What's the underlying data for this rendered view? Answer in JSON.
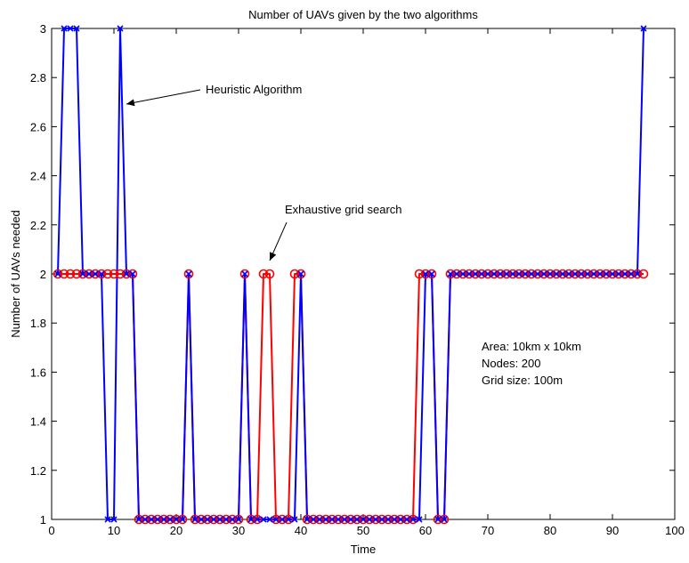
{
  "chart_data": {
    "type": "line",
    "title": "Number of UAVs given by the two algorithms",
    "xlabel": "Time",
    "ylabel": "Number of UAVs needed",
    "xlim": [
      0,
      100
    ],
    "ylim": [
      1,
      3
    ],
    "xticks": [
      0,
      10,
      20,
      30,
      40,
      50,
      60,
      70,
      80,
      90,
      100
    ],
    "yticks": [
      1,
      1.2,
      1.4,
      1.6,
      1.8,
      2,
      2.2,
      2.4,
      2.6,
      2.8,
      3
    ],
    "x": [
      1,
      2,
      3,
      4,
      5,
      6,
      7,
      8,
      9,
      10,
      11,
      12,
      13,
      14,
      15,
      16,
      17,
      18,
      19,
      20,
      21,
      22,
      23,
      24,
      25,
      26,
      27,
      28,
      29,
      30,
      31,
      32,
      33,
      34,
      35,
      36,
      37,
      38,
      39,
      40,
      41,
      42,
      43,
      44,
      45,
      46,
      47,
      48,
      49,
      50,
      51,
      52,
      53,
      54,
      55,
      56,
      57,
      58,
      59,
      60,
      61,
      62,
      63,
      64,
      65,
      66,
      67,
      68,
      69,
      70,
      71,
      72,
      73,
      74,
      75,
      76,
      77,
      78,
      79,
      80,
      81,
      82,
      83,
      84,
      85,
      86,
      87,
      88,
      89,
      90,
      91,
      92,
      93,
      94,
      95
    ],
    "series": [
      {
        "color": "#ff0000",
        "marker": "circle",
        "values": [
          2,
          2,
          2,
          2,
          2,
          2,
          2,
          2,
          2,
          2,
          2,
          2,
          2,
          1,
          1,
          1,
          1,
          1,
          1,
          1,
          1,
          2,
          1,
          1,
          1,
          1,
          1,
          1,
          1,
          1,
          2,
          1,
          1,
          2,
          2,
          1,
          1,
          1,
          2,
          2,
          1,
          1,
          1,
          1,
          1,
          1,
          1,
          1,
          1,
          1,
          1,
          1,
          1,
          1,
          1,
          1,
          1,
          1,
          2,
          2,
          2,
          1,
          1,
          2,
          2,
          2,
          2,
          2,
          2,
          2,
          2,
          2,
          2,
          2,
          2,
          2,
          2,
          2,
          2,
          2,
          2,
          2,
          2,
          2,
          2,
          2,
          2,
          2,
          2,
          2,
          2,
          2,
          2,
          2,
          2
        ]
      },
      {
        "color": "#0000ff",
        "marker": "x",
        "values": [
          2,
          3,
          3,
          3,
          2,
          2,
          2,
          2,
          1,
          1,
          3,
          2,
          2,
          1,
          1,
          1,
          1,
          1,
          1,
          1,
          1,
          2,
          1,
          1,
          1,
          1,
          1,
          1,
          1,
          1,
          2,
          1,
          1,
          1,
          1,
          1,
          1,
          1,
          1,
          2,
          1,
          1,
          1,
          1,
          1,
          1,
          1,
          1,
          1,
          1,
          1,
          1,
          1,
          1,
          1,
          1,
          1,
          1,
          1,
          2,
          2,
          1,
          1,
          2,
          2,
          2,
          2,
          2,
          2,
          2,
          2,
          2,
          2,
          2,
          2,
          2,
          2,
          2,
          2,
          2,
          2,
          2,
          2,
          2,
          2,
          2,
          2,
          2,
          2,
          2,
          2,
          2,
          2,
          2,
          3
        ]
      }
    ],
    "annotations": {
      "heuristic": "Heuristic Algorithm",
      "exhaustive": "Exhaustive  grid search",
      "info": [
        "Area: 10km x 10km",
        "Nodes: 200",
        "Grid size: 100m"
      ]
    },
    "grid": false,
    "legend": "none"
  }
}
